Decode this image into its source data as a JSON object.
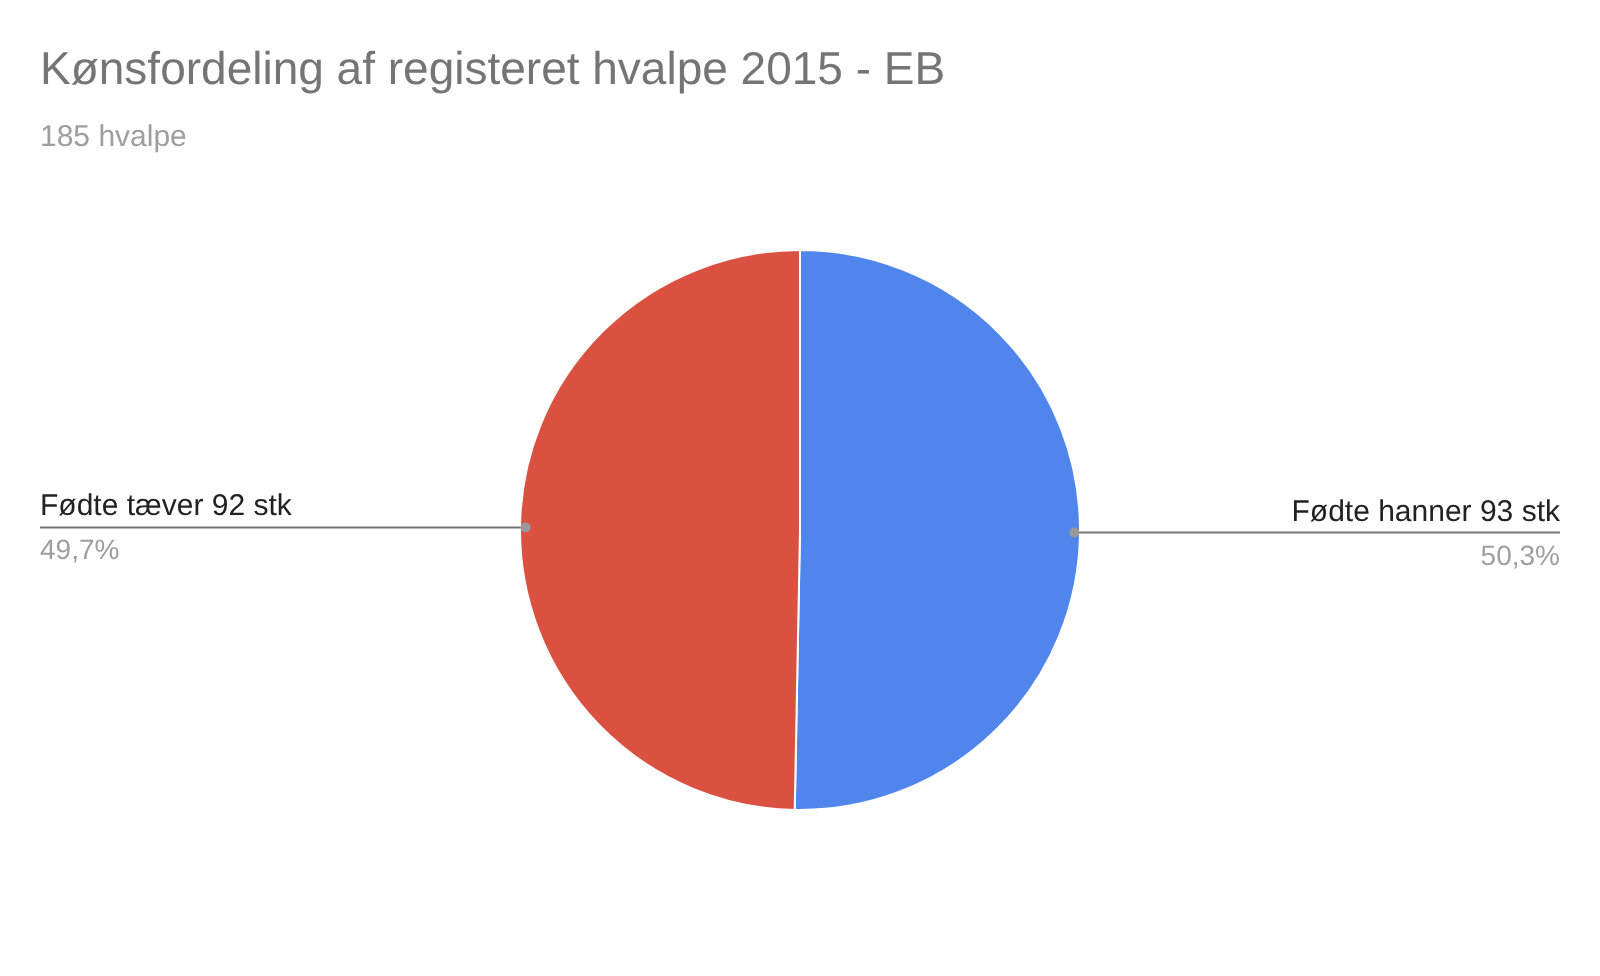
{
  "chart_data": {
    "type": "pie",
    "title": "Kønsfordeling af registeret hvalpe 2015 - EB",
    "subtitle": "185 hvalpe",
    "categories": [
      "Fødte hanner 93 stk",
      "Fødte tæver 92 stk"
    ],
    "values": [
      50.3,
      49.7
    ],
    "colors": [
      "#5086ec",
      "#db5141"
    ],
    "value_labels": [
      "50,3%",
      "49,7%"
    ],
    "legend": false
  }
}
